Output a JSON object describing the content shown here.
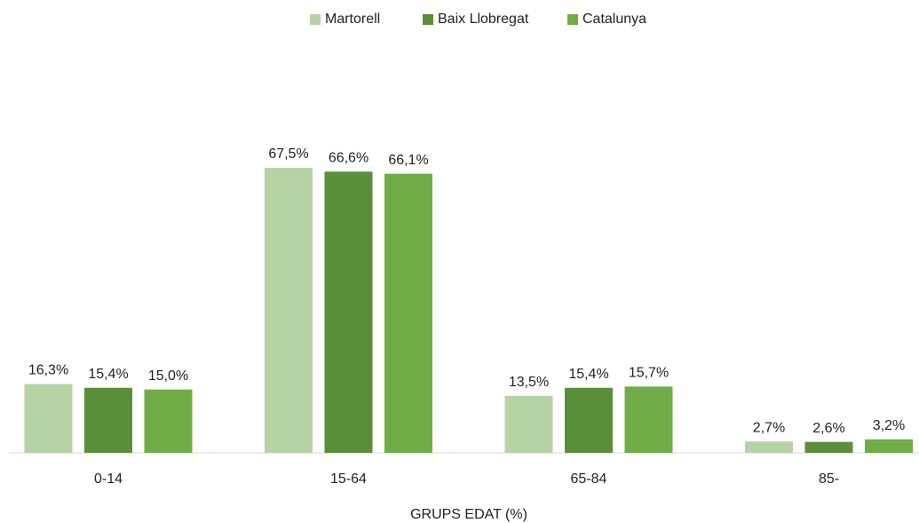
{
  "chart_data": {
    "type": "bar",
    "x_label": "GRUPS EDAT (%)",
    "categories": [
      "0-14",
      "15-64",
      "65-84",
      "85-"
    ],
    "series": [
      {
        "name": "Martorell",
        "color": "#b5d3a5",
        "values": [
          16.3,
          67.5,
          13.5,
          2.7
        ],
        "value_labels": [
          "16,3%",
          "67,5%",
          "13,5%",
          "2,7%"
        ]
      },
      {
        "name": "Baix Llobregat",
        "color": "#5a8f3a",
        "values": [
          15.4,
          66.6,
          15.4,
          2.6
        ],
        "value_labels": [
          "15,4%",
          "66,6%",
          "15,4%",
          "2,6%"
        ]
      },
      {
        "name": "Catalunya",
        "color": "#70ad47",
        "values": [
          15.0,
          66.1,
          15.7,
          3.2
        ],
        "value_labels": [
          "15,0%",
          "66,1%",
          "15,7%",
          "3,2%"
        ]
      }
    ],
    "legend": "top"
  }
}
